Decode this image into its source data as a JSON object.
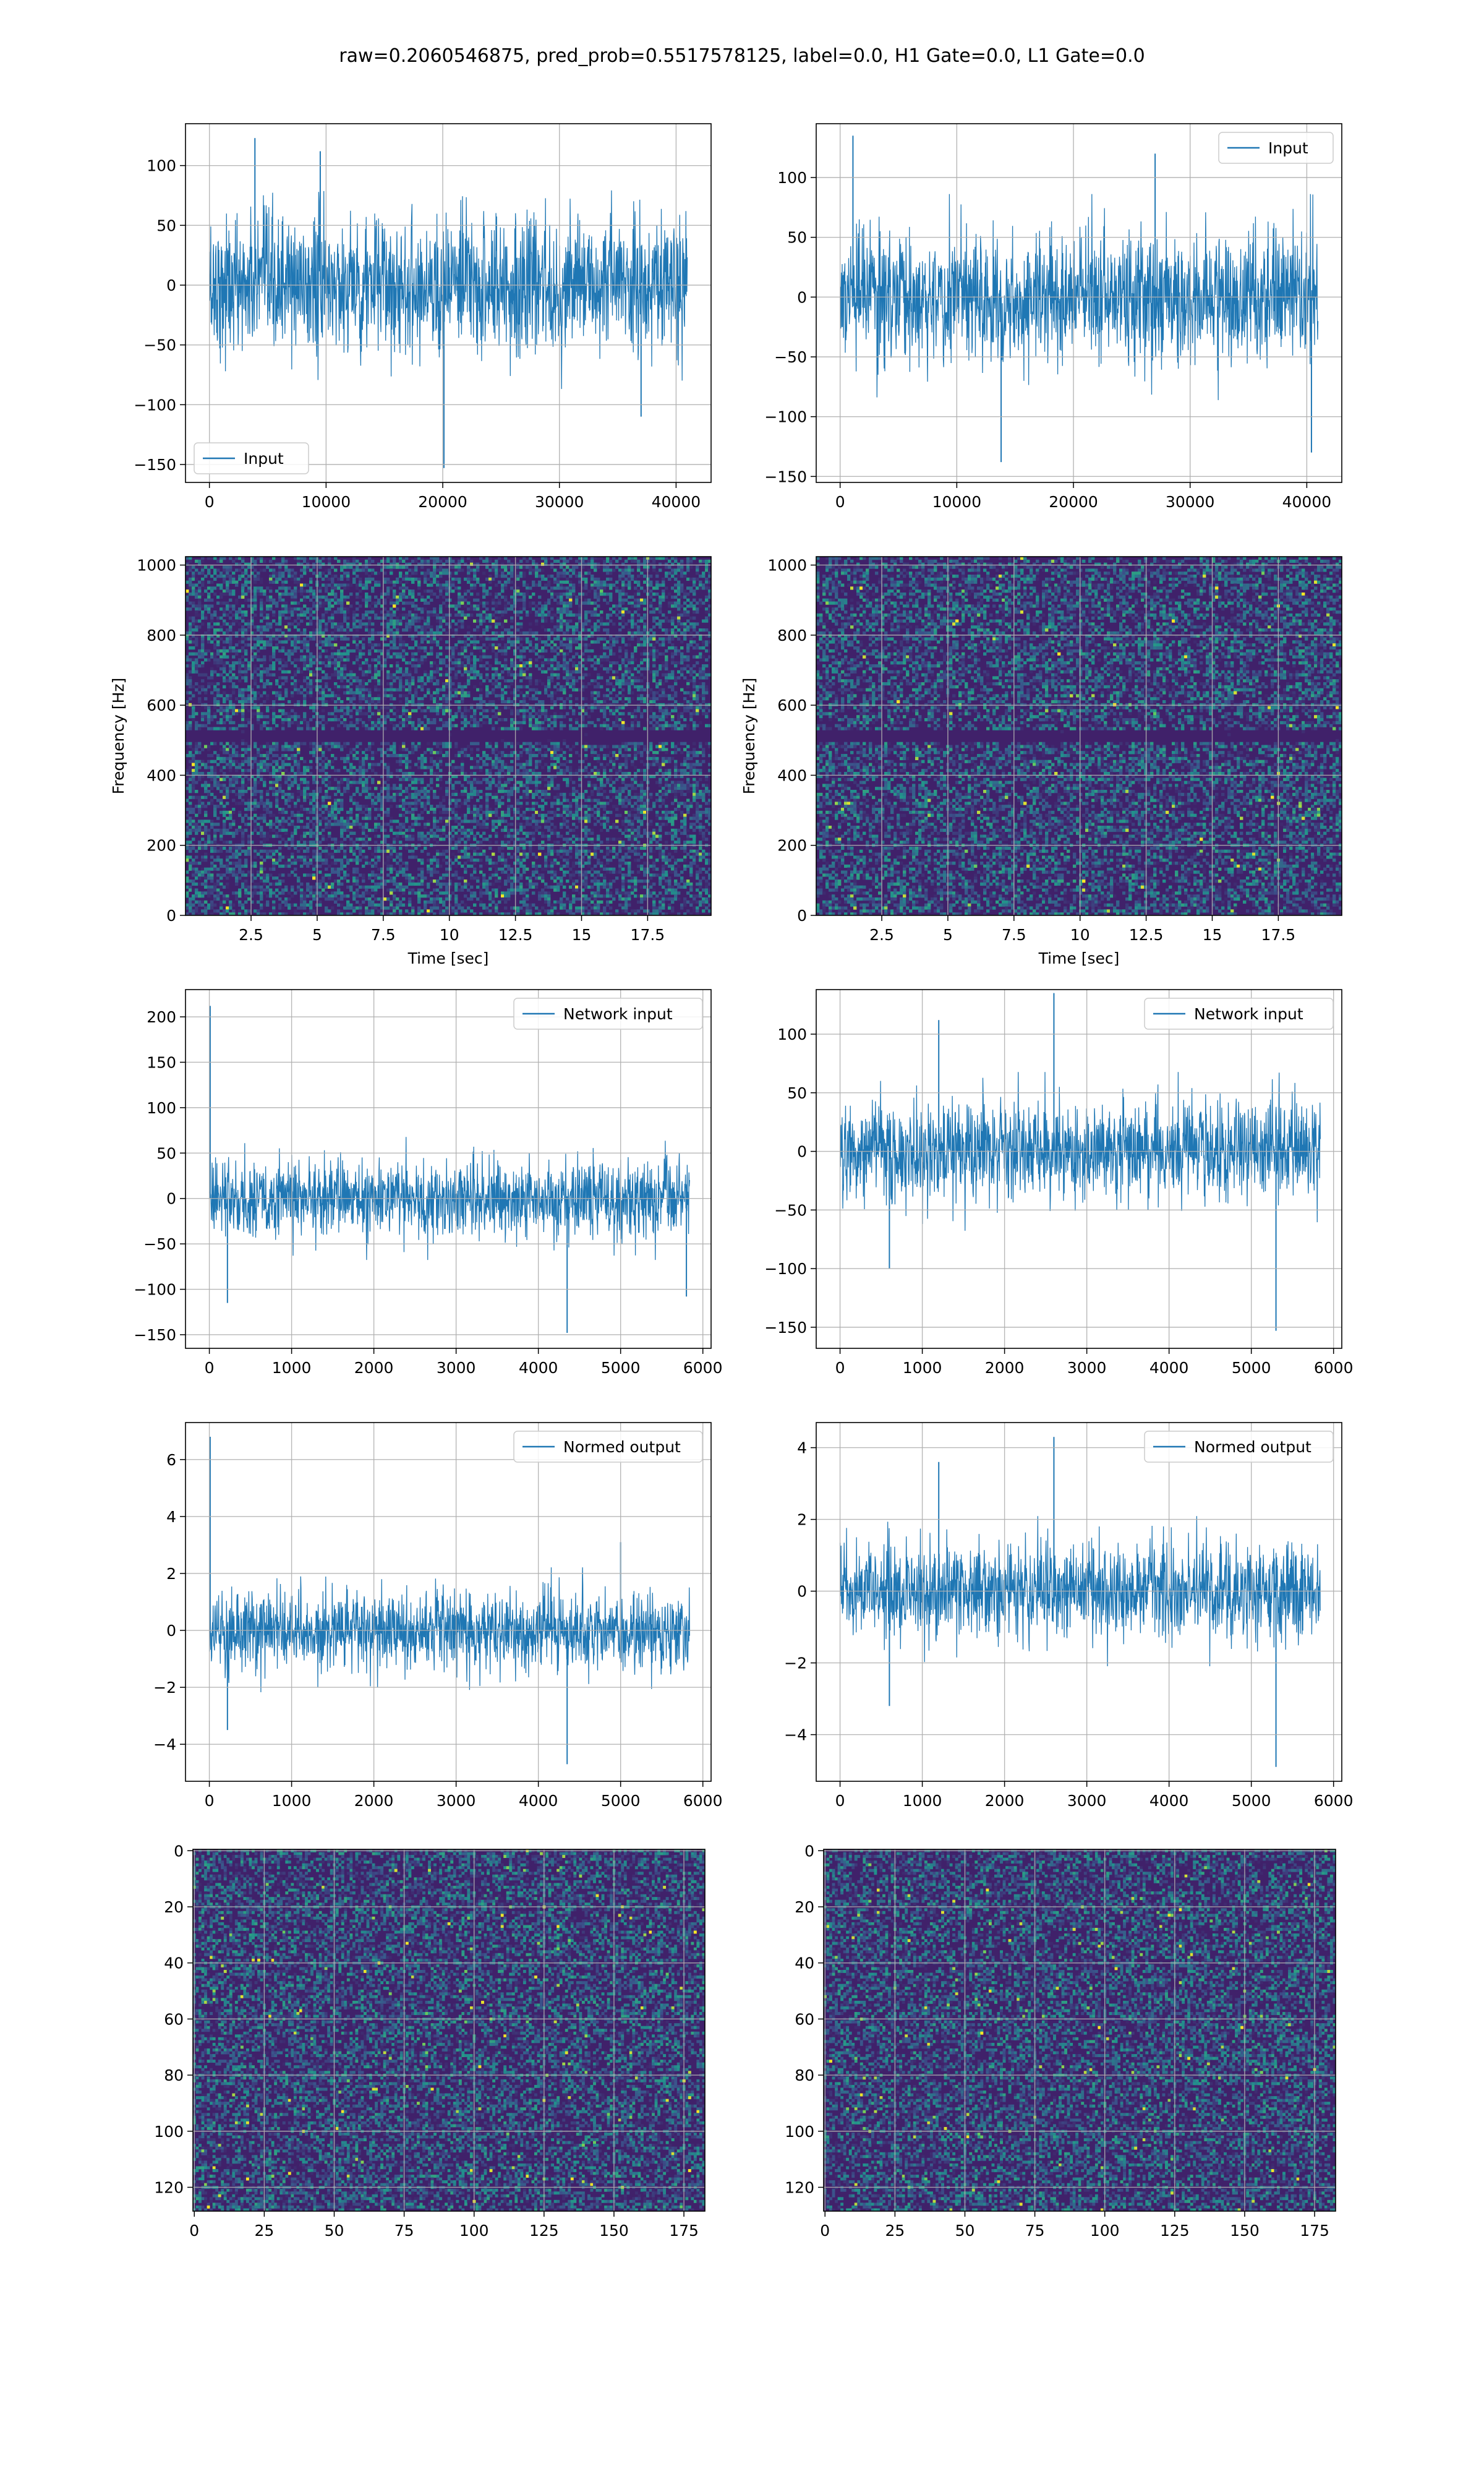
{
  "suptitle": "raw=0.2060546875, pred_prob=0.5517578125, label=0.0, H1 Gate=0.0, L1 Gate=0.0",
  "colors": {
    "line": "#1f77b4",
    "grid": "#b0b0b0",
    "viridis_low": "#440154",
    "viridis_mid": "#21918c",
    "viridis_high": "#fde725"
  },
  "chart_data": [
    {
      "panel": "row1-left",
      "type": "line",
      "legend": "Input",
      "legend_loc": "lower-left",
      "xlim": [
        -2050,
        43000
      ],
      "ylim": [
        -165,
        135
      ],
      "xticks": [
        0,
        10000,
        20000,
        30000,
        40000
      ],
      "yticks": [
        -150,
        -100,
        -50,
        0,
        50,
        100
      ],
      "n_samples": 40960,
      "band": [
        -75,
        75
      ],
      "spikes": [
        [
          3900,
          123
        ],
        [
          20100,
          -153
        ],
        [
          9500,
          112
        ],
        [
          37000,
          -110
        ]
      ],
      "grid": true
    },
    {
      "panel": "row1-right",
      "type": "line",
      "legend": "Input",
      "legend_loc": "upper-right",
      "xlim": [
        -2050,
        43000
      ],
      "ylim": [
        -155,
        145
      ],
      "xticks": [
        0,
        10000,
        20000,
        30000,
        40000
      ],
      "yticks": [
        -150,
        -100,
        -50,
        0,
        50,
        100
      ],
      "n_samples": 40960,
      "band": [
        -70,
        70
      ],
      "spikes": [
        [
          1100,
          135
        ],
        [
          13800,
          -138
        ],
        [
          40400,
          -130
        ],
        [
          27000,
          120
        ]
      ],
      "grid": true
    },
    {
      "panel": "row2-left",
      "type": "heatmap",
      "xlabel": "Time [sec]",
      "ylabel": "Frequency [Hz]",
      "xlim": [
        0.02,
        19.9
      ],
      "ylim": [
        0,
        1024
      ],
      "xticks": [
        2.5,
        5.0,
        7.5,
        10.0,
        12.5,
        15.0,
        17.5
      ],
      "yticks": [
        0,
        200,
        400,
        600,
        800,
        1000
      ],
      "dark_band_hz": 512,
      "grid": true
    },
    {
      "panel": "row2-right",
      "type": "heatmap",
      "xlabel": "Time [sec]",
      "ylabel": "Frequency [Hz]",
      "xlim": [
        0.02,
        19.9
      ],
      "ylim": [
        0,
        1024
      ],
      "xticks": [
        2.5,
        5.0,
        7.5,
        10.0,
        12.5,
        15.0,
        17.5
      ],
      "yticks": [
        0,
        200,
        400,
        600,
        800,
        1000
      ],
      "dark_band_hz": 512,
      "grid": true
    },
    {
      "panel": "row3-left",
      "type": "line",
      "legend": "Network input",
      "legend_loc": "upper-right",
      "xlim": [
        -290,
        6100
      ],
      "ylim": [
        -165,
        230
      ],
      "xticks": [
        0,
        1000,
        2000,
        3000,
        4000,
        5000,
        6000
      ],
      "yticks": [
        -150,
        -100,
        -50,
        0,
        50,
        100,
        150,
        200
      ],
      "n_samples": 5840,
      "band": [
        -55,
        55
      ],
      "spikes": [
        [
          10,
          212
        ],
        [
          4350,
          -148
        ],
        [
          220,
          -115
        ],
        [
          5800,
          -108
        ]
      ],
      "grid": true
    },
    {
      "panel": "row3-right",
      "type": "line",
      "legend": "Network input",
      "legend_loc": "upper-right",
      "xlim": [
        -290,
        6100
      ],
      "ylim": [
        -168,
        138
      ],
      "xticks": [
        0,
        1000,
        2000,
        3000,
        4000,
        5000,
        6000
      ],
      "yticks": [
        -150,
        -100,
        -50,
        0,
        50,
        100
      ],
      "n_samples": 5840,
      "band": [
        -55,
        55
      ],
      "spikes": [
        [
          2600,
          135
        ],
        [
          5300,
          -153
        ],
        [
          1200,
          112
        ],
        [
          600,
          -100
        ]
      ],
      "grid": true
    },
    {
      "panel": "row4-left",
      "type": "line",
      "legend": "Normed output",
      "legend_loc": "upper-right",
      "xlim": [
        -290,
        6100
      ],
      "ylim": [
        -5.3,
        7.3
      ],
      "xticks": [
        0,
        1000,
        2000,
        3000,
        4000,
        5000,
        6000
      ],
      "yticks": [
        -4,
        -2,
        0,
        2,
        4,
        6
      ],
      "n_samples": 5840,
      "band": [
        -1.8,
        1.8
      ],
      "spikes": [
        [
          10,
          6.8
        ],
        [
          4350,
          -4.7
        ],
        [
          220,
          -3.5
        ],
        [
          5000,
          3.1
        ]
      ],
      "grid": true
    },
    {
      "panel": "row4-right",
      "type": "line",
      "legend": "Normed output",
      "legend_loc": "upper-right",
      "xlim": [
        -290,
        6100
      ],
      "ylim": [
        -5.3,
        4.7
      ],
      "xticks": [
        0,
        1000,
        2000,
        3000,
        4000,
        5000,
        6000
      ],
      "yticks": [
        -4,
        -2,
        0,
        2,
        4
      ],
      "n_samples": 5840,
      "band": [
        -1.7,
        1.7
      ],
      "spikes": [
        [
          2600,
          4.3
        ],
        [
          5300,
          -4.9
        ],
        [
          1200,
          3.6
        ],
        [
          600,
          -3.2
        ]
      ],
      "grid": true
    },
    {
      "panel": "row5-left",
      "type": "heatmap",
      "xlim": [
        -0.5,
        182.5
      ],
      "ylim": [
        128.5,
        -0.5
      ],
      "y_inverted": true,
      "xticks": [
        0,
        25,
        50,
        75,
        100,
        125,
        150,
        175
      ],
      "yticks": [
        0,
        20,
        40,
        60,
        80,
        100,
        120
      ],
      "cols": 183,
      "rows": 129,
      "grid": true
    },
    {
      "panel": "row5-right",
      "type": "heatmap",
      "xlim": [
        -0.5,
        182.5
      ],
      "ylim": [
        128.5,
        -0.5
      ],
      "y_inverted": true,
      "xticks": [
        0,
        25,
        50,
        75,
        100,
        125,
        150,
        175
      ],
      "yticks": [
        0,
        20,
        40,
        60,
        80,
        100,
        120
      ],
      "cols": 183,
      "rows": 129,
      "grid": true
    }
  ]
}
